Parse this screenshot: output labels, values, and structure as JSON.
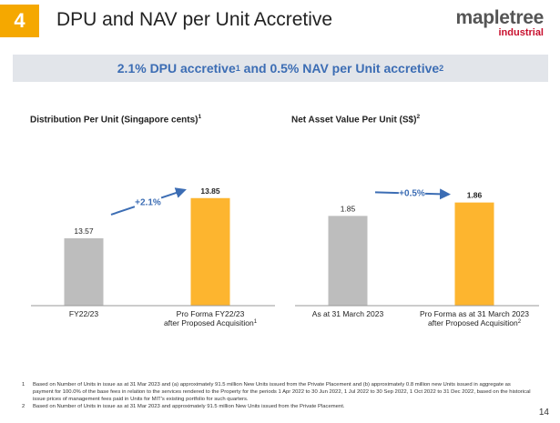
{
  "header": {
    "section_number": "4",
    "title": "DPU and NAV per Unit Accretive",
    "logo_main": "mapletree",
    "logo_sub": "industrial"
  },
  "banner": {
    "part1": "2.1% DPU accretive",
    "sup1": "1",
    "part2": " and 0.5% NAV per Unit accretive",
    "sup2": "2"
  },
  "colors": {
    "grey_bar": "#bdbdbd",
    "yellow_bar": "#fdb52f",
    "accent_blue": "#3c6db4",
    "axis": "#999999"
  },
  "chart_data": [
    {
      "type": "bar",
      "title": "Distribution Per Unit (Singapore cents)",
      "title_sup": "1",
      "categories": [
        "FY22/23",
        "Pro Forma FY22/23 after Proposed Acquisition"
      ],
      "category_lines": [
        [
          "FY22/23"
        ],
        [
          "Pro Forma FY22/23",
          "after Proposed Acquisition"
        ]
      ],
      "category_sups": [
        "",
        "1"
      ],
      "values": [
        13.57,
        13.85
      ],
      "value_labels": [
        "13.57",
        "13.85"
      ],
      "value_bold": [
        false,
        true
      ],
      "bar_colors": [
        "#bdbdbd",
        "#fdb52f"
      ],
      "change_label": "+2.1%",
      "ylim": [
        13.1,
        13.95
      ],
      "xlabel": "",
      "ylabel": ""
    },
    {
      "type": "bar",
      "title": "Net Asset Value Per Unit (S$)",
      "title_sup": "2",
      "categories": [
        "As at 31 March 2023",
        "Pro Forma as at 31 March 2023 after Proposed Acquisition"
      ],
      "category_lines": [
        [
          "As at 31 March 2023"
        ],
        [
          "Pro Forma as at 31 March 2023",
          "after Proposed Acquisition"
        ]
      ],
      "category_sups": [
        "",
        "2"
      ],
      "values": [
        1.85,
        1.86
      ],
      "value_labels": [
        "1.85",
        "1.86"
      ],
      "value_bold": [
        false,
        true
      ],
      "bar_colors": [
        "#bdbdbd",
        "#fdb52f"
      ],
      "change_label": "+0.5%",
      "ylim": [
        1.783,
        1.874
      ],
      "xlabel": "",
      "ylabel": ""
    }
  ],
  "footnotes": [
    {
      "num": "1",
      "text": "Based on Number of Units in issue as at 31 Mar 2023 and (a) approximately 91.5 million New Units issued from the Private Placement and (b) approximately 0.8 million new Units issued in aggregate as payment for 100.0% of the base fees in relation to the services rendered to the Property for the periods 1 Apr 2022 to 30 Jun 2022, 1 Jul 2022 to 30 Sep 2022, 1 Oct 2022 to 31 Dec 2022, based on the historical issue prices of management fees paid in Units for MIT's existing portfolio for such quarters."
    },
    {
      "num": "2",
      "text": "Based on Number of Units in issue as at 31 Mar 2023 and approximately 91.5 million New Units issued from the Private Placement."
    }
  ],
  "page_number": "14"
}
